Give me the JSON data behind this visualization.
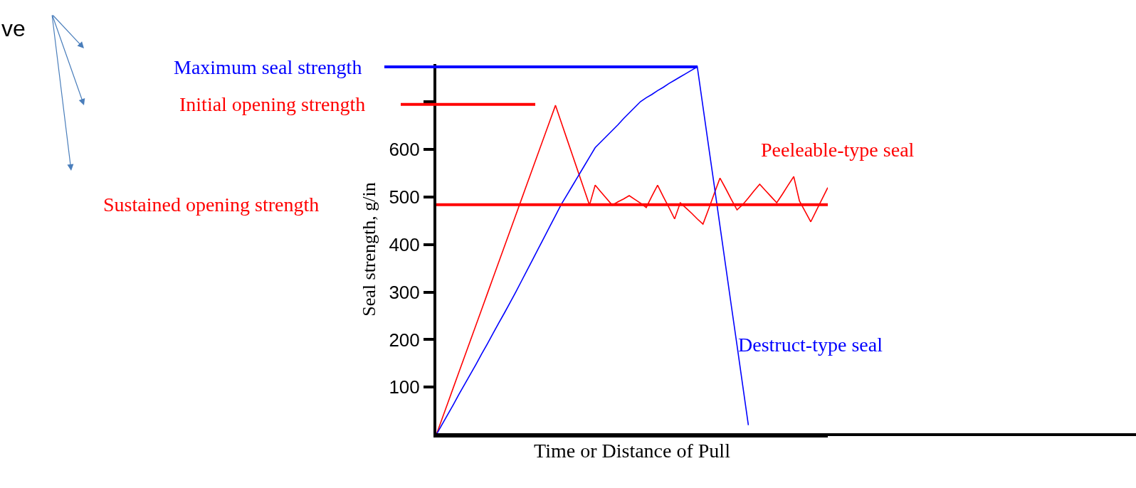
{
  "chart_data": {
    "type": "line",
    "xlabel": "Time or Distance of Pull",
    "ylabel": "Seal strength, g/in",
    "categories": [
      null,
      null,
      null,
      null,
      null,
      null,
      null,
      null,
      null,
      null,
      null,
      null,
      null,
      null,
      null,
      null,
      null,
      null,
      null,
      null,
      null,
      null,
      null,
      null,
      null,
      null,
      null,
      null,
      null,
      null,
      null,
      null,
      null,
      null,
      null,
      null,
      null,
      null,
      null,
      null,
      null,
      null,
      null,
      null,
      null,
      null,
      null,
      null,
      null,
      null,
      null,
      null,
      null,
      null,
      null,
      null,
      null,
      null,
      null,
      null,
      null,
      null,
      null,
      null,
      null,
      null,
      null,
      null,
      null,
      null
    ],
    "series": [
      {
        "name": "Peeleable-type seal",
        "color": "#ff0000",
        "values": [
          0,
          33,
          66,
          99,
          132,
          165,
          198,
          231,
          264,
          297,
          330,
          363,
          396,
          429,
          462,
          495,
          528,
          561,
          594,
          627,
          660,
          693,
          658,
          623,
          588,
          553,
          518,
          483,
          525,
          511,
          497,
          483,
          490,
          496,
          503,
          495,
          487,
          478,
          502,
          525,
          501,
          478,
          454,
          488,
          477,
          466,
          454,
          443,
          475,
          508,
          540,
          518,
          495,
          473,
          484,
          498,
          513,
          527,
          514,
          501,
          488,
          506,
          525,
          543,
          492,
          470,
          448,
          472,
          496,
          520
        ]
      },
      {
        "name": "Destruct-type seal",
        "color": "#0000ff",
        "values": [
          0,
          21,
          42,
          63,
          85,
          106,
          127,
          148,
          170,
          191,
          213,
          235,
          256,
          278,
          300,
          323,
          346,
          369,
          392,
          415,
          438,
          461,
          484,
          504,
          524,
          544,
          564,
          584,
          604,
          616,
          628,
          640,
          652,
          665,
          677,
          689,
          701,
          709,
          716,
          724,
          731,
          739,
          746,
          753,
          760,
          767,
          774,
          690,
          606,
          523,
          439,
          355,
          271,
          188,
          104,
          20,
          null,
          null,
          null,
          null,
          null,
          null,
          null,
          null,
          null,
          null,
          null,
          null,
          null,
          null
        ]
      }
    ],
    "ylim": [
      0,
      780
    ],
    "yticks": [
      100,
      200,
      300,
      400,
      500,
      600,
      {
        "value": 700,
        "label": null
      }
    ],
    "tick_labels": "y",
    "legend": false,
    "marker": "none",
    "line_style": "solid",
    "ref_lines": [
      {
        "axis": "y",
        "value": 774,
        "label": "Maximum seal strength",
        "color": "#0000ff"
      },
      {
        "axis": "y",
        "value": 695,
        "label": "Initial opening strength",
        "color": "#ff0000"
      },
      {
        "axis": "y",
        "value": 484,
        "label": "Sustained opening strength",
        "color": "#ff0000"
      }
    ],
    "annotations": [
      "ve"
    ]
  }
}
